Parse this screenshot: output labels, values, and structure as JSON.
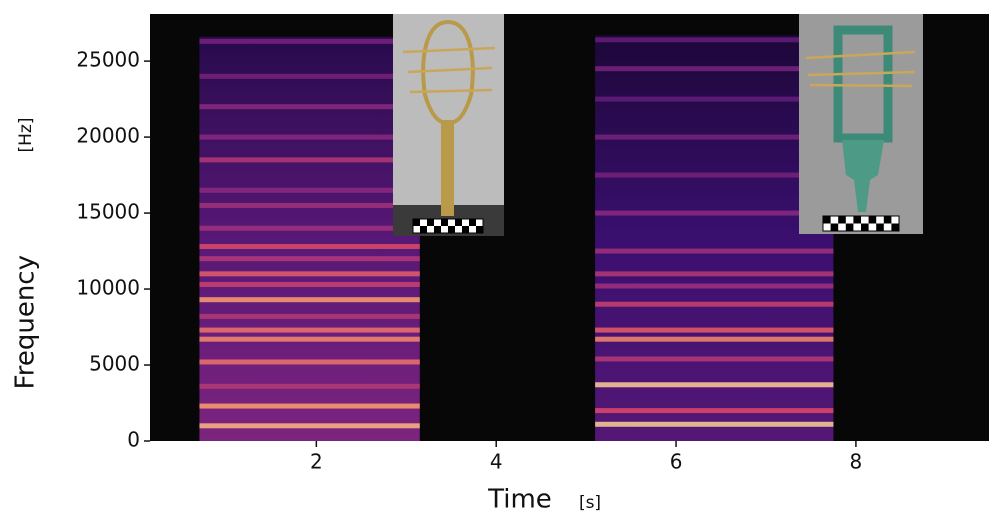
{
  "chart_data": {
    "type": "spectrogram",
    "xlabel": "Time",
    "xunit": "[s]",
    "ylabel": "Frequency",
    "yunit": "[Hz]",
    "xlim": [
      0.15,
      9.48
    ],
    "ylim": [
      0,
      28100
    ],
    "xticks": [
      2,
      4,
      6,
      8
    ],
    "yticks": [
      0,
      5000,
      10000,
      15000,
      20000,
      25000
    ],
    "background": "#070707",
    "colormap": [
      "#000004",
      "#3b0f70",
      "#8c2981",
      "#de4968",
      "#fe9f6d",
      "#fcfdbf"
    ],
    "segments": [
      {
        "start": 0.7,
        "end": 3.15,
        "top": 26600,
        "base_intensity": 0.3,
        "bands": [
          1000,
          2300,
          3600,
          5200,
          6700,
          7300,
          8200,
          9300,
          10300,
          11000,
          12000,
          12800,
          14000,
          15500,
          16500,
          18500,
          20000,
          22000,
          24000,
          26300
        ],
        "intensities": [
          0.85,
          0.8,
          0.5,
          0.7,
          0.75,
          0.7,
          0.5,
          0.8,
          0.55,
          0.65,
          0.5,
          0.6,
          0.45,
          0.45,
          0.4,
          0.5,
          0.4,
          0.4,
          0.35,
          0.35
        ]
      },
      {
        "start": 5.1,
        "end": 7.75,
        "top": 26700,
        "base_intensity": 0.22,
        "bands": [
          1100,
          2000,
          3700,
          5400,
          6700,
          7300,
          9000,
          10200,
          11000,
          12500,
          15000,
          17500,
          20000,
          22500,
          24500,
          26400
        ],
        "intensities": [
          0.9,
          0.6,
          0.9,
          0.5,
          0.75,
          0.65,
          0.55,
          0.45,
          0.5,
          0.45,
          0.4,
          0.35,
          0.35,
          0.3,
          0.35,
          0.3
        ]
      }
    ]
  }
}
